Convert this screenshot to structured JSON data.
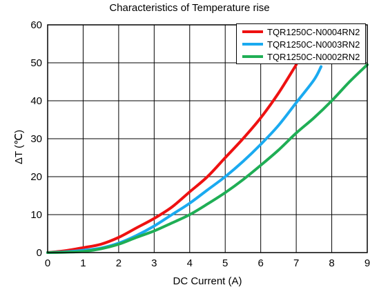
{
  "chart_data": {
    "type": "line",
    "title": "Characteristics of Temperature rise",
    "xlabel": "DC Current (A)",
    "ylabel": "ΔT (℃)",
    "xlim": [
      0,
      9
    ],
    "ylim": [
      0,
      60
    ],
    "xticks": [
      "0",
      "1",
      "2",
      "3",
      "4",
      "5",
      "6",
      "7",
      "8",
      "9"
    ],
    "yticks": [
      "0",
      "10",
      "20",
      "30",
      "40",
      "50",
      "60"
    ],
    "grid": true,
    "legend_position": "top-right",
    "series": [
      {
        "name": "TQR1250C-N0004RN2",
        "color": "#ee1111",
        "x": [
          0,
          0.5,
          1,
          1.5,
          2,
          2.5,
          3,
          3.5,
          4,
          4.5,
          5,
          5.5,
          6,
          6.5,
          7
        ],
        "y": [
          0,
          0.5,
          1.3,
          2.2,
          4,
          6.5,
          9,
          12,
          16,
          20,
          25,
          30,
          35.5,
          42,
          49.5
        ]
      },
      {
        "name": "TQR1250C-N0003RN2",
        "color": "#1aaaf0",
        "x": [
          0,
          0.5,
          1,
          1.5,
          2,
          2.5,
          3,
          3.5,
          4,
          4.5,
          5,
          5.5,
          6,
          6.5,
          7,
          7.5,
          7.7
        ],
        "y": [
          0,
          0.2,
          0.6,
          1.2,
          2.5,
          4.5,
          7,
          10,
          13,
          16.5,
          20,
          24,
          28.5,
          33.5,
          39.5,
          45.5,
          49
        ]
      },
      {
        "name": "TQR1250C-N0002RN2",
        "color": "#1fae55",
        "x": [
          0,
          0.5,
          1,
          1.5,
          2,
          2.5,
          3,
          3.5,
          4,
          4.5,
          5,
          5.5,
          6,
          6.5,
          7,
          7.5,
          8,
          8.5,
          9
        ],
        "y": [
          0,
          0.1,
          0.3,
          1,
          2.2,
          4,
          5.7,
          7.8,
          10,
          12.8,
          15.8,
          19.2,
          23,
          27,
          31.5,
          35.5,
          40,
          45,
          49.5
        ]
      }
    ]
  }
}
